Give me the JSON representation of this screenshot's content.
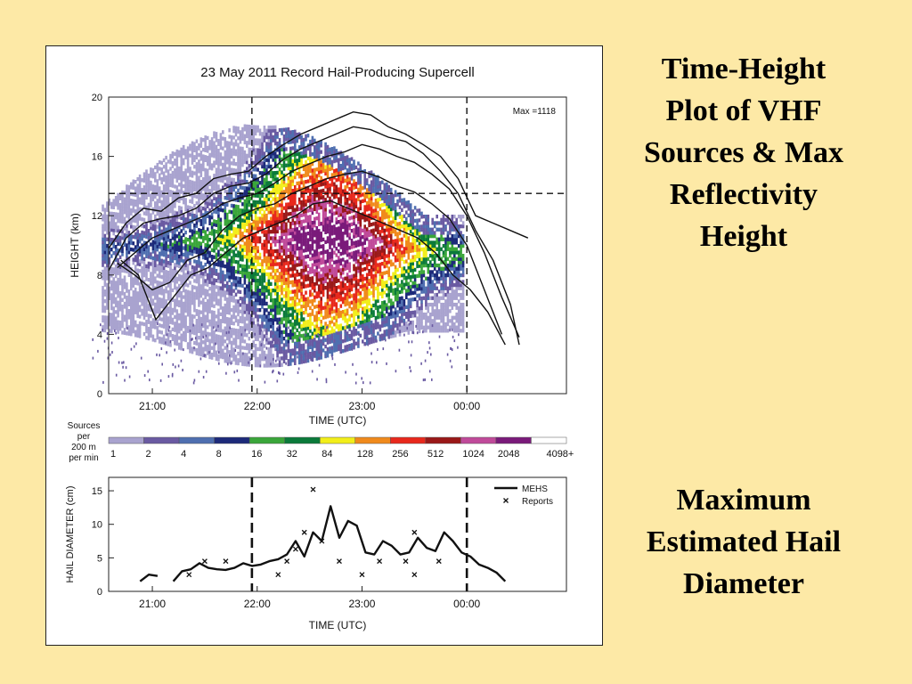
{
  "slide": {
    "right_titles": [
      {
        "lines": [
          "Time-Height",
          "Plot of VHF",
          "Sources & Max",
          "Reflectivity",
          "Height"
        ]
      },
      {
        "lines": [
          "Maximum",
          "Estimated Hail",
          "Diameter"
        ]
      }
    ]
  },
  "colors": {
    "background": "#fde9a6",
    "scale": [
      "#a9a3cf",
      "#6a5aa2",
      "#4f6fb0",
      "#1d2a7a",
      "#3aa63a",
      "#0b7a3a",
      "#f2ee1a",
      "#f08a1c",
      "#e8281c",
      "#9a1818",
      "#c04a9a",
      "#7a1a7a",
      "#ffffff"
    ]
  },
  "chart_data": [
    {
      "type": "heatmap",
      "title": "23 May 2011 Record Hail-Producing Supercell",
      "xlabel": "TIME (UTC)",
      "ylabel": "HEIGHT (km)",
      "xlim": [
        "20:35",
        "00:57"
      ],
      "ylim": [
        0,
        20
      ],
      "x_ticks": [
        "21:00",
        "22:00",
        "23:00",
        "00:00"
      ],
      "y_ticks": [
        0,
        4,
        8,
        12,
        16,
        20
      ],
      "grid": false,
      "annotation": "Max =1118",
      "colorbar": {
        "title_lines": [
          "Sources",
          "per",
          "200 m",
          "per min"
        ],
        "labels": [
          "1",
          "2",
          "4",
          "8",
          "16",
          "32",
          "84",
          "128",
          "256",
          "512",
          "1024",
          "2048",
          "4098+"
        ]
      },
      "reference_lines": {
        "horizontal_km": 13.5,
        "vertical_times": [
          "21:57",
          "00:00"
        ]
      },
      "reflectivity_height_series": [
        {
          "x": [
            "20:35",
            "20:45",
            "20:55",
            "21:05",
            "21:15",
            "21:25",
            "21:35",
            "21:45",
            "21:55",
            "22:05",
            "22:15",
            "22:25",
            "22:35",
            "22:45",
            "22:55",
            "23:05",
            "23:15",
            "23:25",
            "23:35",
            "23:45",
            "23:55",
            "00:05",
            "00:15",
            "00:25",
            "00:35"
          ],
          "values": [
            9.8,
            11.5,
            12.5,
            12.3,
            13.2,
            13.5,
            14.5,
            14.8,
            15.0,
            16.0,
            16.8,
            17.5,
            18.0,
            18.5,
            19.0,
            18.8,
            18.0,
            17.5,
            16.8,
            16.0,
            14.5,
            12.0,
            11.5,
            11.0,
            10.5
          ]
        },
        {
          "x": [
            "20:35",
            "20:45",
            "20:55",
            "21:05",
            "21:15",
            "21:25",
            "21:35",
            "21:45",
            "21:55",
            "22:05",
            "22:15",
            "22:25",
            "22:35",
            "22:45",
            "22:55",
            "23:05",
            "23:15",
            "23:25",
            "23:35",
            "23:45",
            "23:55",
            "00:05",
            "00:15",
            "00:25",
            "00:30"
          ],
          "values": [
            8.3,
            10.5,
            11.5,
            11.8,
            12.0,
            12.5,
            13.5,
            14.0,
            14.2,
            14.8,
            15.8,
            16.5,
            17.0,
            17.5,
            18.0,
            17.8,
            17.3,
            17.0,
            16.2,
            15.0,
            13.5,
            11.0,
            9.0,
            6.0,
            3.3
          ]
        },
        {
          "x": [
            "20:40",
            "20:50",
            "21:00",
            "21:10",
            "21:20",
            "21:30",
            "21:40",
            "21:50",
            "22:00",
            "22:10",
            "22:20",
            "22:30",
            "22:40",
            "22:50",
            "23:00",
            "23:10",
            "23:20",
            "23:30",
            "23:40",
            "23:50",
            "00:00",
            "00:10",
            "00:20",
            "00:30"
          ],
          "values": [
            8.5,
            9.5,
            10.5,
            11.0,
            11.5,
            12.0,
            12.8,
            13.2,
            13.5,
            14.2,
            15.0,
            15.5,
            16.0,
            16.3,
            16.8,
            16.5,
            16.0,
            15.6,
            14.8,
            13.8,
            12.0,
            9.5,
            6.5,
            3.8
          ]
        },
        {
          "x": [
            "20:40",
            "20:50",
            "21:00",
            "21:10",
            "21:20",
            "21:30",
            "21:40",
            "21:50",
            "22:00",
            "22:10",
            "22:20",
            "22:30",
            "22:40",
            "22:50",
            "23:00",
            "23:10",
            "23:20",
            "23:30",
            "23:40",
            "23:50",
            "00:00",
            "00:10",
            "00:20"
          ],
          "values": [
            8.8,
            8.0,
            7.0,
            7.5,
            9.0,
            9.5,
            11.0,
            12.0,
            12.5,
            12.8,
            13.5,
            14.0,
            14.5,
            14.8,
            15.0,
            14.6,
            14.0,
            13.6,
            12.8,
            11.8,
            10.0,
            7.0,
            4.0
          ]
        },
        {
          "x": [
            "20:42",
            "20:52",
            "21:02",
            "21:12",
            "21:22",
            "21:32",
            "21:42",
            "21:52",
            "22:02",
            "22:12",
            "22:22",
            "22:32",
            "22:42",
            "22:52",
            "23:02",
            "23:12",
            "23:22",
            "23:32",
            "23:42",
            "23:52",
            "00:02",
            "00:12",
            "00:22"
          ],
          "values": [
            9.0,
            8.0,
            5.0,
            6.5,
            8.0,
            8.5,
            9.5,
            10.5,
            11.0,
            11.5,
            12.0,
            12.8,
            13.0,
            12.5,
            12.0,
            11.5,
            11.0,
            10.5,
            9.5,
            8.0,
            7.0,
            5.5,
            3.3
          ]
        }
      ]
    },
    {
      "type": "line",
      "xlabel": "TIME (UTC)",
      "ylabel": "HAIL DIAMETER (cm)",
      "xlim": [
        "20:35",
        "00:57"
      ],
      "ylim": [
        0,
        17
      ],
      "x_ticks": [
        "21:00",
        "22:00",
        "23:00",
        "00:00"
      ],
      "y_ticks": [
        0,
        5,
        10,
        15
      ],
      "legend_position": "top-right",
      "reference_lines": {
        "vertical_times": [
          "21:57",
          "00:00"
        ]
      },
      "series": [
        {
          "name": "MEHS",
          "x": [
            "20:53",
            "20:58",
            "21:03",
            "21:12",
            "21:17",
            "21:22",
            "21:27",
            "21:32",
            "21:37",
            "21:42",
            "21:47",
            "21:52",
            "21:57",
            "22:02",
            "22:07",
            "22:12",
            "22:17",
            "22:22",
            "22:27",
            "22:32",
            "22:37",
            "22:42",
            "22:47",
            "22:52",
            "22:57",
            "23:02",
            "23:07",
            "23:12",
            "23:17",
            "23:22",
            "23:27",
            "23:32",
            "23:37",
            "23:42",
            "23:47",
            "23:52",
            "23:57",
            "00:02",
            "00:07",
            "00:12",
            "00:17",
            "00:22"
          ],
          "values": [
            1.5,
            2.5,
            2.3,
            1.5,
            3.0,
            3.3,
            4.2,
            3.5,
            3.3,
            3.2,
            3.5,
            4.2,
            3.8,
            4.0,
            4.5,
            4.8,
            5.5,
            7.5,
            5.2,
            8.8,
            7.5,
            12.7,
            8.0,
            10.5,
            9.8,
            5.8,
            5.5,
            7.5,
            6.8,
            5.5,
            5.8,
            8.0,
            6.5,
            6.0,
            8.8,
            7.5,
            5.8,
            5.2,
            4.0,
            3.5,
            2.8,
            1.5
          ]
        },
        {
          "name": "Reports",
          "x": [
            "21:21",
            "21:30",
            "21:42",
            "22:12",
            "22:17",
            "22:22",
            "22:27",
            "22:32",
            "22:37",
            "22:47",
            "23:00",
            "23:10",
            "23:25",
            "23:30",
            "23:30",
            "23:44"
          ],
          "values": [
            2.5,
            4.5,
            4.5,
            2.5,
            4.5,
            6.3,
            8.8,
            15.2,
            7.5,
            4.5,
            2.5,
            4.5,
            4.5,
            2.5,
            8.8,
            4.5
          ]
        }
      ]
    }
  ]
}
